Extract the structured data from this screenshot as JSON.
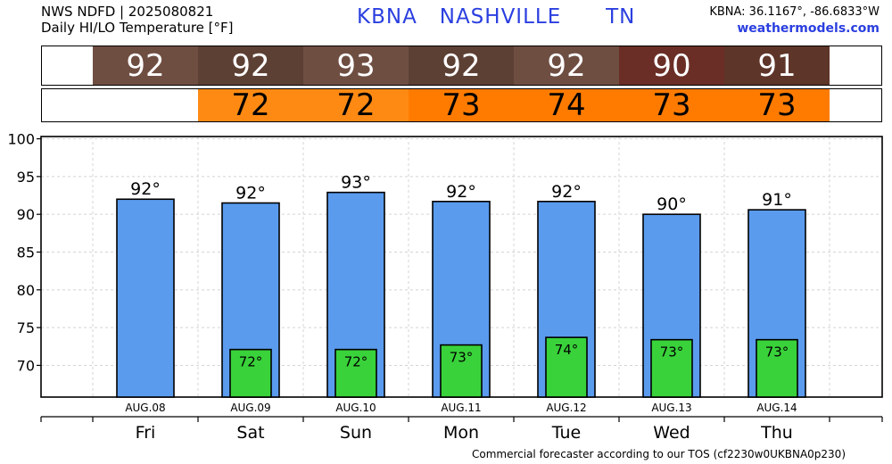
{
  "header": {
    "line1": "NWS NDFD | 2025080821",
    "line2": "Daily HI/LO Temperature [°F]",
    "station": "KBNA   NASHVILLE      TN",
    "coords": "KBNA: 36.1167°, -86.6833°W",
    "site": "weathermodels.com"
  },
  "strips": {
    "high": {
      "values": [
        "92",
        "92",
        "93",
        "92",
        "92",
        "90",
        "91"
      ],
      "colors": [
        "#6f4e42",
        "#5d4034",
        "#6f4e42",
        "#5d4034",
        "#6f4e42",
        "#6a2e26",
        "#5e3529"
      ]
    },
    "low": {
      "values": [
        "",
        "72",
        "72",
        "73",
        "74",
        "73",
        "73"
      ],
      "colors": [
        "",
        "#fe8a13",
        "#fe8a13",
        "#fe7b00",
        "#fe7b00",
        "#fe7b00",
        "#fe7b00"
      ]
    }
  },
  "chart_data": {
    "type": "bar",
    "categories": [
      "AUG.08",
      "AUG.09",
      "AUG.10",
      "AUG.11",
      "AUG.12",
      "AUG.13",
      "AUG.14"
    ],
    "days": [
      "Fri",
      "Sat",
      "Sun",
      "Mon",
      "Tue",
      "Wed",
      "Thu"
    ],
    "series": [
      {
        "values": [
          92,
          91.5,
          92.9,
          91.7,
          91.7,
          90,
          90.6
        ],
        "labels": [
          "92°",
          "92°",
          "93°",
          "92°",
          "92°",
          "90°",
          "91°"
        ],
        "color": "#5a9bee"
      },
      {
        "values": [
          null,
          72.1,
          72.1,
          72.7,
          73.7,
          73.4,
          73.4
        ],
        "labels": [
          "",
          "72°",
          "72°",
          "73°",
          "74°",
          "73°",
          "73°"
        ],
        "color": "#39d23a"
      }
    ],
    "yticks": [
      70,
      75,
      80,
      85,
      90,
      95,
      100
    ],
    "ylim": [
      65.8,
      100.3
    ],
    "grid": true
  },
  "footer": "Commercial forecaster according to our TOS (cf2230w0UKBNA0p230)"
}
